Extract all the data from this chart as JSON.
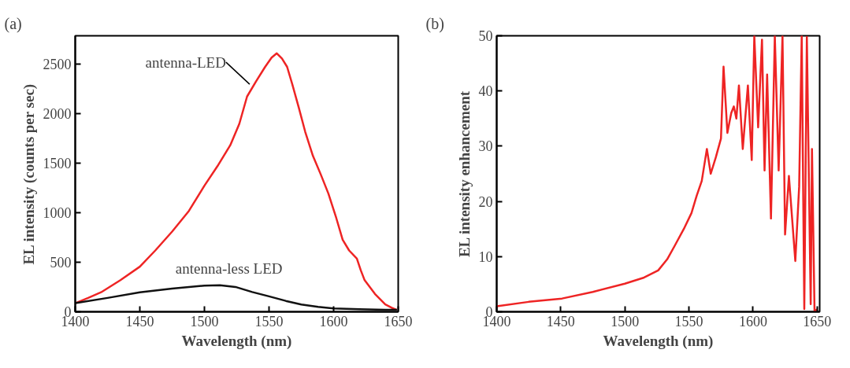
{
  "chart_data": [
    {
      "type": "line",
      "title": "(a)",
      "xlabel": "Wavelength (nm)",
      "ylabel": "EL intensity (counts per sec)",
      "xlim": [
        1400,
        1650
      ],
      "ylim": [
        0,
        2790
      ],
      "xticks": [
        1400,
        1450,
        1500,
        1550,
        1600,
        1650
      ],
      "yticks": [
        0,
        500,
        1000,
        1500,
        2000,
        2500
      ],
      "annotations": [
        {
          "text": "antenna-LED",
          "x": 1535,
          "y": 2300
        },
        {
          "text": "antenna-less LED",
          "x": 1519,
          "y": 265
        }
      ],
      "series": [
        {
          "color": "#ee2424",
          "x": [
            1400,
            1410,
            1420,
            1435,
            1450,
            1462,
            1475,
            1488,
            1500,
            1510,
            1520,
            1527,
            1533,
            1540,
            1547,
            1552,
            1556,
            1560,
            1564,
            1568,
            1573,
            1578,
            1584,
            1590,
            1596,
            1602,
            1607,
            1612,
            1618,
            1621,
            1624,
            1632,
            1640,
            1645,
            1649
          ],
          "values": [
            87,
            140,
            197,
            320,
            456,
            620,
            811,
            1020,
            1275,
            1470,
            1684,
            1900,
            2176,
            2330,
            2476,
            2570,
            2613,
            2560,
            2476,
            2300,
            2066,
            1820,
            1575,
            1390,
            1193,
            950,
            729,
            620,
            538,
            420,
            319,
            180,
            74,
            40,
            19
          ]
        },
        {
          "color": "#111111",
          "x": [
            1400,
            1425,
            1450,
            1475,
            1500,
            1512,
            1524,
            1537,
            1550,
            1563,
            1575,
            1588,
            1600,
            1620,
            1640,
            1649
          ],
          "values": [
            87,
            140,
            197,
            235,
            265,
            268,
            251,
            200,
            156,
            110,
            74,
            50,
            33,
            25,
            19,
            19
          ]
        }
      ]
    },
    {
      "type": "line",
      "title": "(b)",
      "xlabel": "Wavelength (nm)",
      "ylabel": "EL intensity enhancement",
      "xlim": [
        1400,
        1652
      ],
      "ylim": [
        0,
        50
      ],
      "xticks": [
        1400,
        1450,
        1500,
        1550,
        1600,
        1650
      ],
      "yticks": [
        0,
        10,
        20,
        30,
        40,
        50
      ],
      "series": [
        {
          "color": "#ee2424",
          "x": [
            1400,
            1425,
            1451,
            1475,
            1500,
            1515,
            1526,
            1533,
            1539,
            1546,
            1552,
            1556,
            1560,
            1564,
            1567,
            1571,
            1575,
            1577,
            1580,
            1583,
            1585,
            1587,
            1589,
            1592,
            1596,
            1599,
            1601,
            1604,
            1607,
            1609,
            1611,
            1614,
            1617,
            1620,
            1623,
            1625,
            1628,
            1633,
            1636,
            1638,
            1640,
            1642,
            1645,
            1646,
            1648,
            1650
          ],
          "values": [
            1.0,
            1.8,
            2.4,
            3.6,
            5.1,
            6.2,
            7.5,
            9.5,
            12,
            15,
            17.9,
            21,
            23.7,
            29.5,
            25,
            28,
            31.4,
            44.4,
            32.4,
            36,
            37.2,
            35,
            41,
            29.5,
            41,
            27.5,
            50,
            33.4,
            49.3,
            25.6,
            43,
            16.9,
            50,
            25.6,
            50,
            14,
            24.6,
            9.2,
            22.7,
            50,
            0.5,
            49.8,
            1.4,
            29.5,
            0,
            0.5
          ]
        }
      ]
    }
  ]
}
